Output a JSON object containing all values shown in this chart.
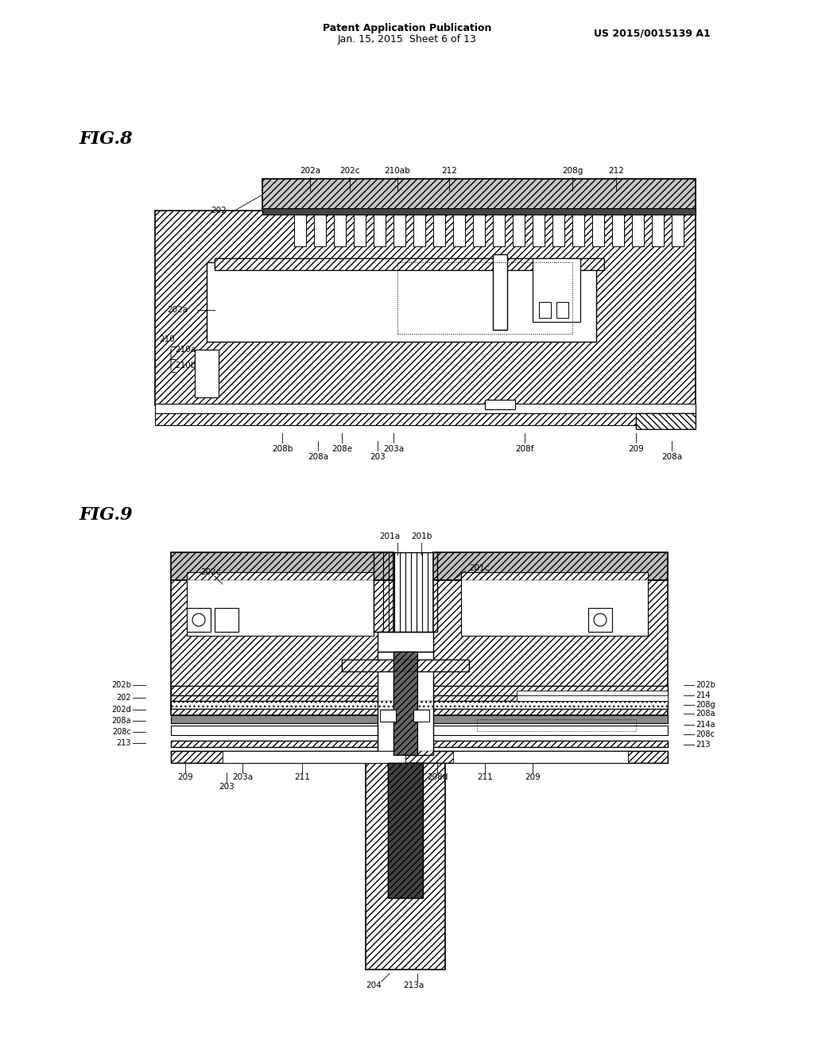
{
  "title_header": "Patent Application Publication",
  "date_header": "Jan. 15, 2015  Sheet 6 of 13",
  "patent_header": "US 2015/0015139 A1",
  "fig8_label": "FIG.8",
  "fig9_label": "FIG.9",
  "background_color": "#ffffff",
  "line_color": "#000000",
  "hatch_color": "#000000",
  "hatch_pattern": "////",
  "hatch_pattern2": "xxxx"
}
